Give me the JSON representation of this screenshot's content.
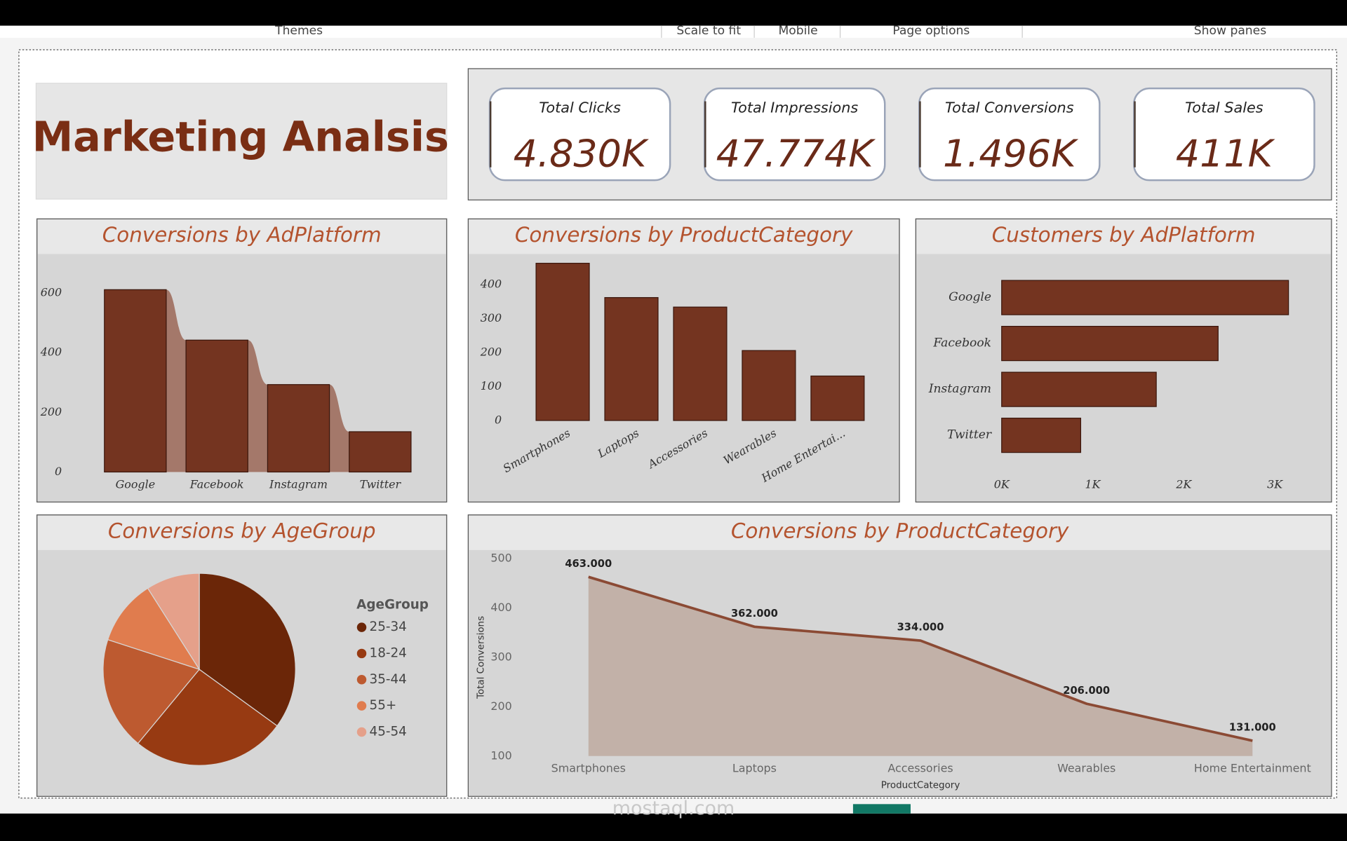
{
  "toolbar": {
    "items": [
      "Themes",
      "Scale to fit",
      "Mobile",
      "Page options",
      "Show panes"
    ]
  },
  "header": {
    "title": "Marketing Analsis"
  },
  "kpis": [
    {
      "label": "Total Clicks",
      "value": "4.830K"
    },
    {
      "label": "Total Impressions",
      "value": "47.774K"
    },
    {
      "label": "Total Conversions",
      "value": "1.496K"
    },
    {
      "label": "Total Sales",
      "value": "411K"
    }
  ],
  "watermark": "mostaql.com",
  "chart_data": [
    {
      "type": "bar",
      "title": "Conversions by AdPlatform",
      "categories": [
        "Google",
        "Facebook",
        "Instagram",
        "Twitter"
      ],
      "values": [
        611,
        442,
        293,
        135
      ],
      "color": "#743420",
      "ribbon_color": "#a4786a",
      "ylim": [
        0,
        650
      ],
      "yticks": [
        0,
        200,
        400,
        600
      ]
    },
    {
      "type": "bar",
      "title": "Conversions by ProductCategory",
      "categories": [
        "Smartphones",
        "Laptops",
        "Accessories",
        "Wearables",
        "Home Entertai..."
      ],
      "values": [
        463,
        362,
        334,
        206,
        131
      ],
      "color": "#743420",
      "ylim": [
        0,
        470
      ],
      "yticks": [
        0,
        100,
        200,
        300,
        400
      ]
    },
    {
      "type": "hbar",
      "title": "Customers by AdPlatform",
      "categories": [
        "Google",
        "Facebook",
        "Instagram",
        "Twitter"
      ],
      "values": [
        3150,
        2377,
        1698,
        868
      ],
      "color": "#743420",
      "xlim": [
        0,
        3500
      ],
      "xticks": [
        {
          "value": 0,
          "label": "0K"
        },
        {
          "value": 1000,
          "label": "1K"
        },
        {
          "value": 2000,
          "label": "2K"
        },
        {
          "value": 3000,
          "label": "3K"
        }
      ]
    },
    {
      "type": "pie",
      "title": "Conversions by AgeGroup",
      "legend_title": "AgeGroup",
      "categories": [
        "25-34",
        "18-24",
        "35-44",
        "55+",
        "45-54"
      ],
      "values": [
        35,
        26,
        19,
        11,
        9
      ],
      "colors": [
        "#6b2608",
        "#973a12",
        "#bd5a30",
        "#e07c4e",
        "#e5a08a"
      ]
    },
    {
      "type": "area",
      "title": "Conversions by ProductCategory",
      "categories": [
        "Smartphones",
        "Laptops",
        "Accessories",
        "Wearables",
        "Home Entertainment"
      ],
      "values": [
        463,
        362,
        334,
        206,
        131
      ],
      "value_labels": [
        "463.000",
        "362.000",
        "334.000",
        "206.000",
        "131.000"
      ],
      "color": "#8b4a34",
      "fill": "#c2b1a8",
      "ylim": [
        100,
        500
      ],
      "yticks": [
        100,
        200,
        300,
        400,
        500
      ],
      "y_label": "Total Conversions",
      "x_label": "ProductCategory"
    }
  ]
}
